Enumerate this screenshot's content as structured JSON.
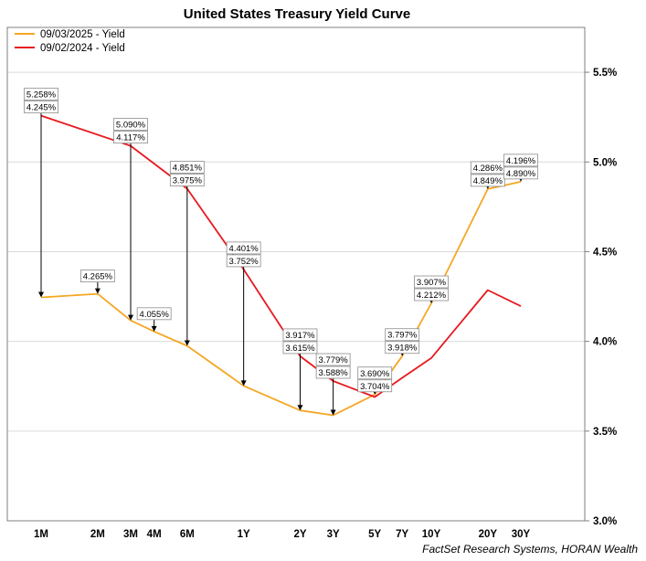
{
  "chart_data": {
    "type": "line",
    "title": "United States Treasury Yield Curve",
    "source": "FactSet Research Systems, HORAN Wealth",
    "categories": [
      "1M",
      "2M",
      "3M",
      "4M",
      "6M",
      "1Y",
      "2Y",
      "3Y",
      "5Y",
      "7Y",
      "10Y",
      "20Y",
      "30Y"
    ],
    "maturity_years": [
      0.0833,
      0.1667,
      0.25,
      0.3333,
      0.5,
      1,
      2,
      3,
      5,
      7,
      10,
      20,
      30
    ],
    "ylim": [
      3.0,
      5.75
    ],
    "yticks": [
      3.0,
      3.5,
      4.0,
      4.5,
      5.0,
      5.5
    ],
    "ytick_labels": [
      "3.0%",
      "3.5%",
      "4.0%",
      "4.5%",
      "5.0%",
      "5.5%"
    ],
    "legend_position": "top-left",
    "series": [
      {
        "name": "09/03/2025 - Yield",
        "color": "#f5a623",
        "values": [
          4.245,
          4.265,
          4.117,
          4.055,
          3.975,
          3.752,
          3.615,
          3.588,
          3.704,
          3.918,
          4.212,
          4.849,
          4.89
        ],
        "labels": [
          "4.245%",
          "4.265%",
          "4.117%",
          "4.055%",
          "3.975%",
          "3.752%",
          "3.615%",
          "3.588%",
          "3.704%",
          "3.918%",
          "4.212%",
          "4.849%",
          "4.890%"
        ]
      },
      {
        "name": "09/02/2024 - Yield",
        "color": "#e8191f",
        "values": [
          5.258,
          null,
          5.09,
          null,
          4.851,
          4.401,
          3.917,
          3.779,
          3.69,
          3.797,
          3.907,
          4.286,
          4.196
        ],
        "labels": [
          "5.258%",
          "",
          "5.090%",
          "",
          "4.851%",
          "4.401%",
          "3.917%",
          "3.779%",
          "3.690%",
          "3.797%",
          "3.907%",
          "4.286%",
          "4.196%"
        ]
      }
    ]
  }
}
